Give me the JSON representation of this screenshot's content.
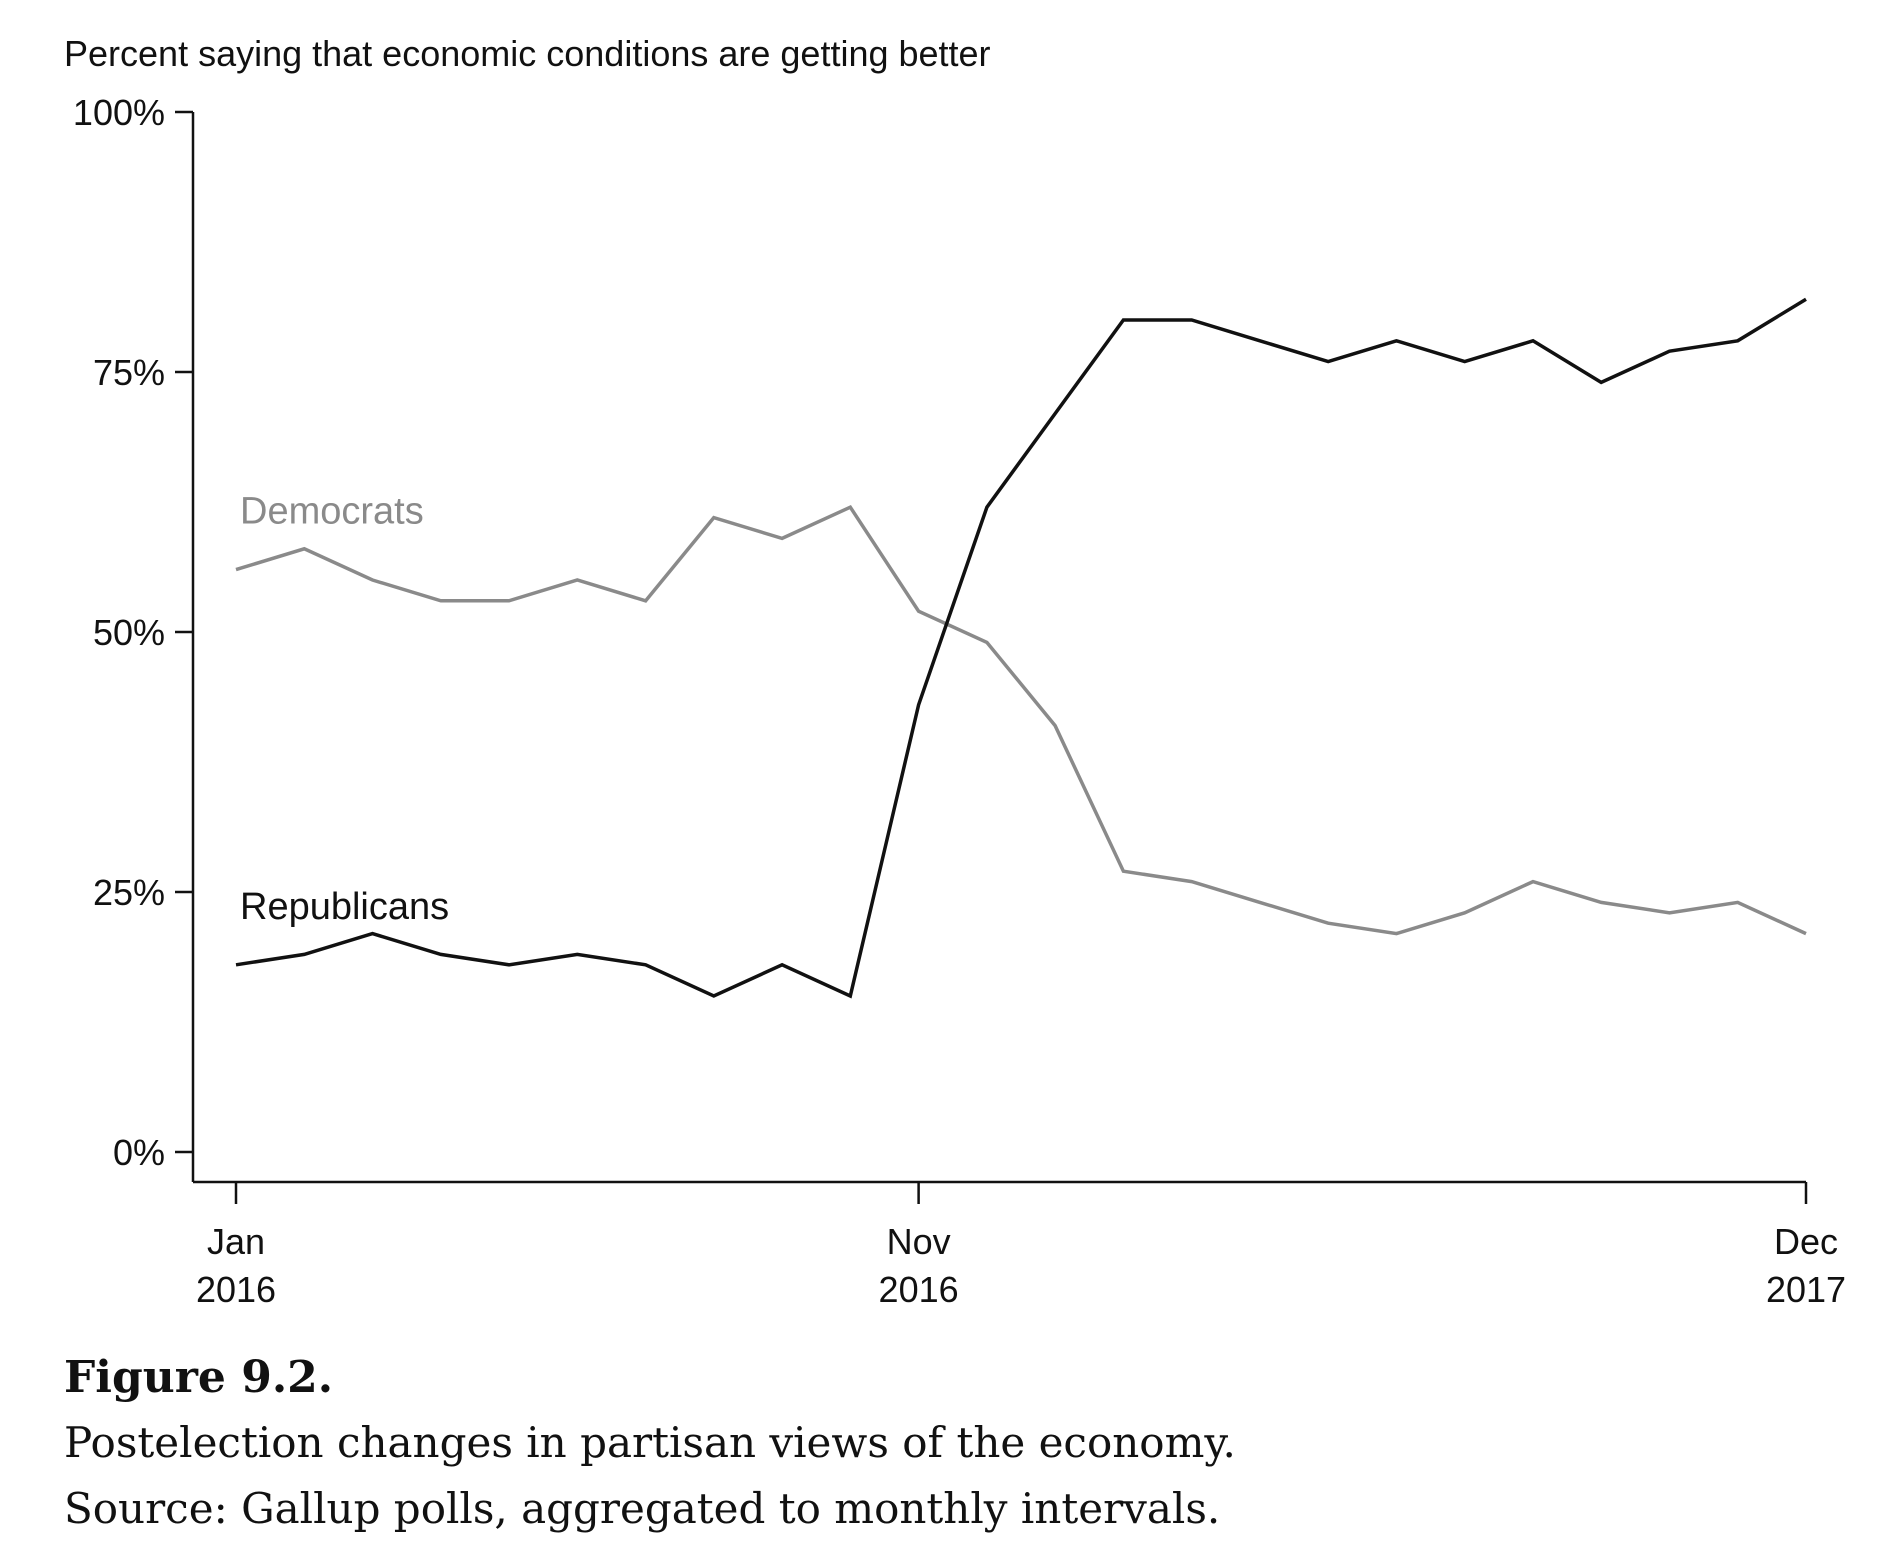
{
  "chart_data": {
    "type": "line",
    "ylabel": "Percent saying that economic conditions are getting better",
    "xlabel": "",
    "ylim": [
      0,
      100
    ],
    "y_ticks": [
      {
        "value": 0,
        "label": "0%"
      },
      {
        "value": 25,
        "label": "25%"
      },
      {
        "value": 50,
        "label": "50%"
      },
      {
        "value": 75,
        "label": "75%"
      },
      {
        "value": 100,
        "label": "100%"
      }
    ],
    "x_ticks": [
      {
        "month": "2016-01",
        "label": [
          "Jan",
          "2016"
        ]
      },
      {
        "month": "2016-11",
        "label": [
          "Nov",
          "2016"
        ]
      },
      {
        "month": "2017-12",
        "label": [
          "Dec",
          "2017"
        ]
      }
    ],
    "x": [
      "2016-01",
      "2016-02",
      "2016-03",
      "2016-04",
      "2016-05",
      "2016-06",
      "2016-07",
      "2016-08",
      "2016-09",
      "2016-10",
      "2016-11",
      "2016-12",
      "2017-01",
      "2017-02",
      "2017-03",
      "2017-04",
      "2017-05",
      "2017-06",
      "2017-07",
      "2017-08",
      "2017-09",
      "2017-10",
      "2017-11",
      "2017-12"
    ],
    "series": [
      {
        "name": "Democrats",
        "color": "#8a8a8a",
        "values": [
          56,
          58,
          55,
          53,
          53,
          55,
          53,
          61,
          59,
          62,
          52,
          49,
          41,
          27,
          26,
          24,
          22,
          21,
          23,
          26,
          24,
          23,
          24,
          21
        ]
      },
      {
        "name": "Republicans",
        "color": "#111111",
        "values": [
          18,
          19,
          21,
          19,
          18,
          19,
          18,
          15,
          18,
          15,
          43,
          62,
          71,
          80,
          80,
          78,
          76,
          78,
          76,
          78,
          74,
          77,
          78,
          82
        ]
      }
    ],
    "grid": false,
    "legend": "inline labels"
  },
  "caption": {
    "title": "Figure 9.2.",
    "line1": "Postelection changes in partisan views of the economy.",
    "line2": "Source: Gallup polls, aggregated to monthly intervals."
  }
}
